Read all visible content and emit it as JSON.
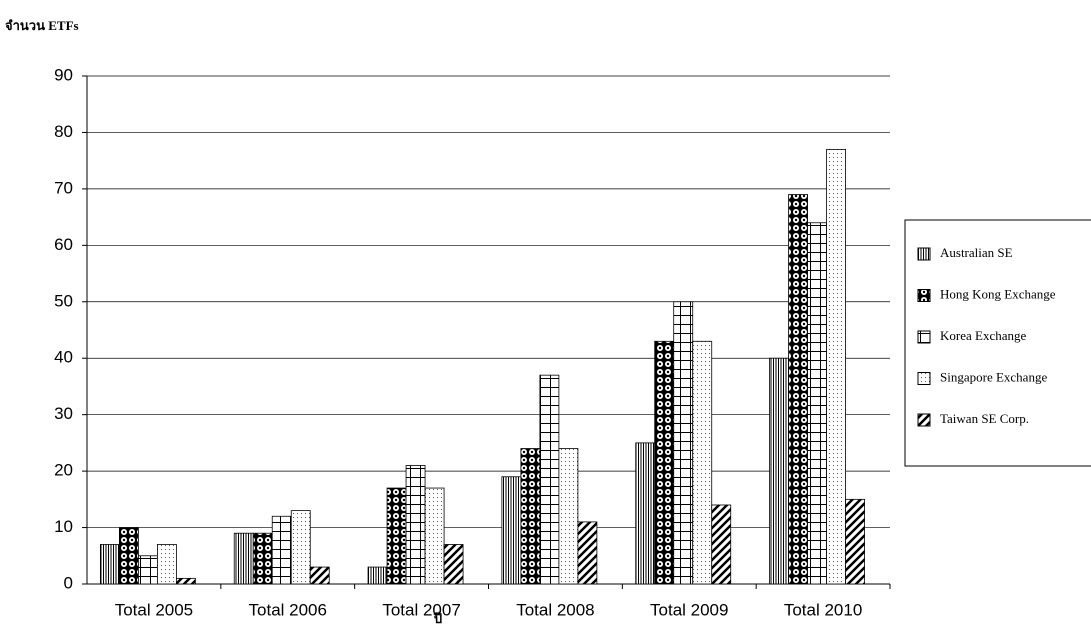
{
  "chart_data": {
    "type": "bar",
    "y_label": "จำนวน ETFs",
    "x_label": "ปี",
    "categories": [
      "Total 2005",
      "Total 2006",
      "Total 2007",
      "Total 2008",
      "Total 2009",
      "Total 2010"
    ],
    "series": [
      {
        "name": "Australian SE",
        "color": "#000000",
        "pattern": "vertical",
        "values": [
          7,
          9,
          3,
          19,
          25,
          40
        ]
      },
      {
        "name": "Hong Kong Exchange",
        "color": "#000000",
        "pattern": "checker",
        "values": [
          10,
          9,
          17,
          24,
          43,
          69
        ]
      },
      {
        "name": "Korea Exchange",
        "color": "#000000",
        "pattern": "grid",
        "values": [
          5,
          12,
          21,
          37,
          50,
          64
        ]
      },
      {
        "name": "Singapore Exchange",
        "color": "#000000",
        "pattern": "dots",
        "values": [
          7,
          13,
          17,
          24,
          43,
          77
        ]
      },
      {
        "name": "Taiwan SE Corp.",
        "color": "#000000",
        "pattern": "diagonal",
        "values": [
          1,
          3,
          7,
          11,
          14,
          15
        ]
      }
    ],
    "ylim": [
      0,
      90
    ],
    "yticks": [
      0,
      10,
      20,
      30,
      40,
      50,
      60,
      70,
      80,
      90
    ],
    "grid": true,
    "legend": "right"
  }
}
